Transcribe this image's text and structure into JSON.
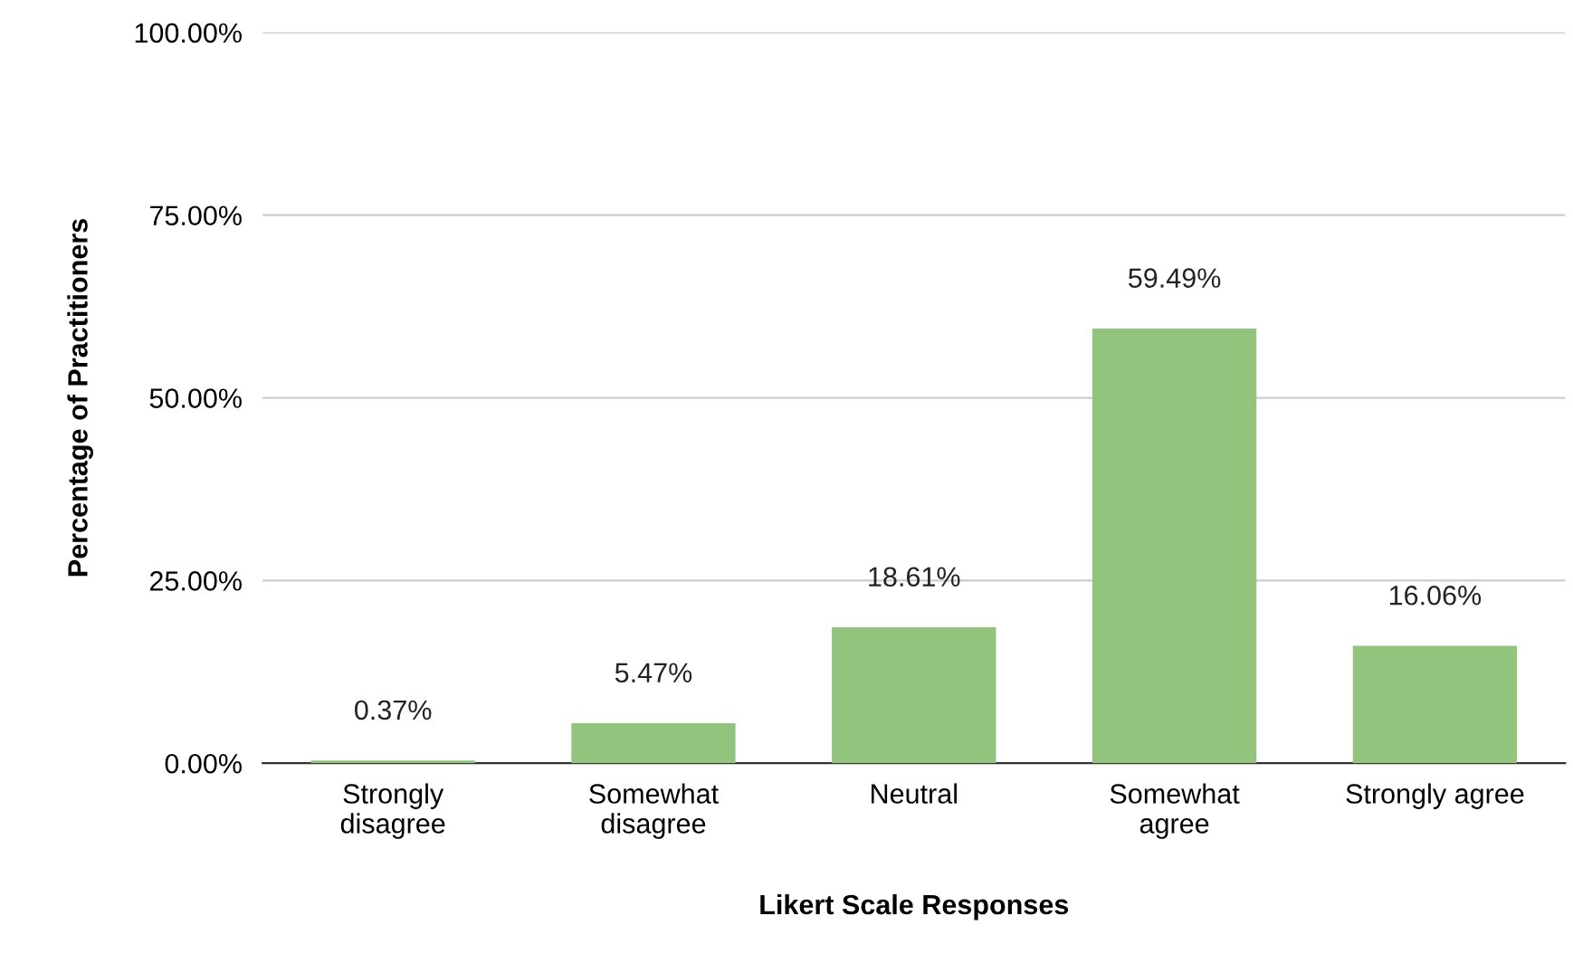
{
  "chart_data": {
    "type": "bar",
    "xlabel": "Likert Scale Responses",
    "ylabel": "Percentage of Practitioners",
    "categories": [
      "Strongly\ndisagree",
      "Somewhat\ndisagree",
      "Neutral",
      "Somewhat\nagree",
      "Strongly agree"
    ],
    "values": [
      0.37,
      5.47,
      18.61,
      59.49,
      16.06
    ],
    "color": "#93c47d",
    "value_labels": [
      "0.37%",
      "5.47%",
      "18.61%",
      "59.49%",
      "16.06%"
    ],
    "ylim": [
      0,
      100
    ],
    "yticks": [
      {
        "value": 0,
        "label": "0.00%"
      },
      {
        "value": 25,
        "label": "25.00%"
      },
      {
        "value": 50,
        "label": "50.00%"
      },
      {
        "value": 75,
        "label": "75.00%"
      },
      {
        "value": 100,
        "label": "100.00%"
      }
    ],
    "grid": "y",
    "legend": false
  }
}
